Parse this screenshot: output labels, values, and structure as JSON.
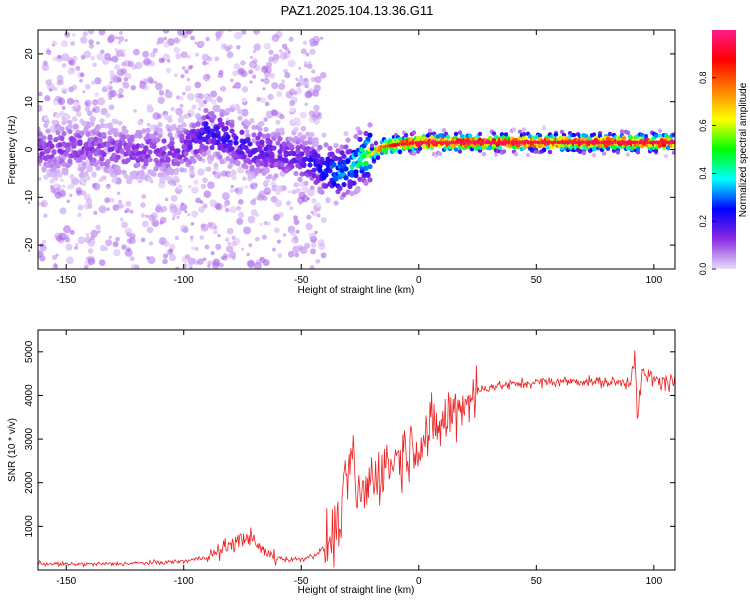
{
  "figure_title": "PAZ1.2025.104.13.36.G11",
  "chart_data": [
    {
      "type": "heatmap",
      "xlabel": "Height of straight line (km)",
      "ylabel": "Frequency (Hz)",
      "xlim": [
        -162,
        109
      ],
      "ylim": [
        -25,
        25
      ],
      "xticks": [
        -150,
        -100,
        -50,
        0,
        50,
        100
      ],
      "yticks": [
        -20,
        -10,
        0,
        10,
        20
      ],
      "grid": false,
      "colorbar": {
        "label": "Normalized spectral amplitude",
        "range": [
          0,
          1
        ],
        "ticks": [
          0.0,
          0.2,
          0.4,
          0.6,
          0.8
        ],
        "tick_labels": [
          "0.0",
          "0.2",
          "0.4",
          "0.6",
          "0.8"
        ],
        "colormap": [
          "#e9dcf9",
          "#8a2be2",
          "#0000ff",
          "#00ffff",
          "#00ff00",
          "#ffff00",
          "#ff7f00",
          "#ff0000",
          "#ff1a8c"
        ]
      },
      "ridge": {
        "x": [
          -160,
          -140,
          -120,
          -100,
          -90,
          -80,
          -70,
          -60,
          -50,
          -45,
          -40,
          -35,
          -30,
          -25,
          -20,
          -15,
          -10,
          0,
          10,
          20,
          40,
          60,
          80,
          100,
          109
        ],
        "y": [
          0,
          0.5,
          -0.5,
          0,
          4,
          2,
          0,
          -1,
          -2,
          -3,
          -4,
          -5,
          -4,
          -2,
          -1,
          0.5,
          1,
          1.5,
          1.5,
          1.5,
          1.5,
          1.5,
          1.5,
          1.5,
          1.5
        ],
        "amplitude": [
          0.12,
          0.12,
          0.12,
          0.13,
          0.2,
          0.2,
          0.18,
          0.15,
          0.15,
          0.2,
          0.25,
          0.3,
          0.35,
          0.45,
          0.6,
          0.75,
          0.85,
          0.9,
          0.92,
          0.92,
          0.9,
          0.9,
          0.9,
          0.9,
          0.9
        ]
      }
    },
    {
      "type": "line",
      "xlabel": "Height of straight line (km)",
      "ylabel": "SNR (10 * v/v)",
      "xlim": [
        -162,
        109
      ],
      "ylim": [
        0,
        5500
      ],
      "xticks": [
        -150,
        -100,
        -50,
        0,
        50,
        100
      ],
      "yticks": [
        1000,
        2000,
        3000,
        4000,
        5000
      ],
      "grid": false,
      "series": [
        {
          "color": "#ee2222",
          "x": [
            -162,
            -150,
            -130,
            -110,
            -100,
            -90,
            -85,
            -80,
            -75,
            -72,
            -70,
            -65,
            -60,
            -55,
            -50,
            -45,
            -40,
            -35,
            -32,
            -30,
            -28,
            -27,
            -25,
            -22,
            -20,
            -15,
            -10,
            -5,
            0,
            5,
            10,
            15,
            20,
            25,
            30,
            40,
            50,
            60,
            70,
            80,
            88,
            90,
            92,
            93,
            95,
            100,
            105,
            109
          ],
          "y": [
            150,
            130,
            140,
            170,
            200,
            300,
            420,
            600,
            700,
            800,
            620,
            380,
            280,
            240,
            250,
            330,
            500,
            900,
            1500,
            2300,
            2600,
            1900,
            1600,
            1900,
            2100,
            2350,
            2550,
            2750,
            2950,
            3150,
            3350,
            3650,
            3900,
            4100,
            4200,
            4250,
            4300,
            4320,
            4330,
            4300,
            4300,
            4350,
            5000,
            3400,
            4500,
            4350,
            4300,
            4300
          ]
        }
      ]
    }
  ]
}
